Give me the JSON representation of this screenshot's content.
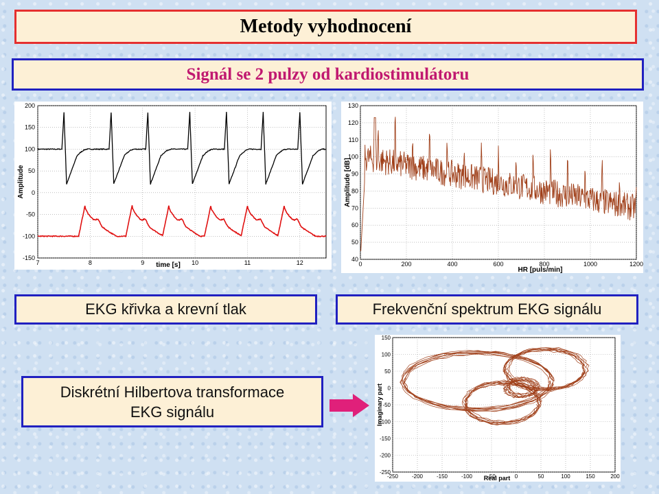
{
  "title": "Metody vyhodnocení",
  "subtitle": "Signál se 2 pulzy od kardiostimulátoru",
  "captions": {
    "ekg": "EKG křivka a krevní tlak",
    "spectrum": "Frekvenční spektrum EKG signálu",
    "hilbert_line1": "Diskrétní Hilbertova transformace",
    "hilbert_line2": "EKG signálu"
  },
  "colors": {
    "ekg": "#000000",
    "pressure": "#e01010",
    "spectrum": "#a0401a",
    "hilbert": "#a0401a",
    "arrow": "#e0207a"
  },
  "chart_data": [
    {
      "type": "line",
      "name": "ekg-and-blood-pressure",
      "xlabel": "time [s]",
      "ylabel": "Amplitude",
      "xlim": [
        7,
        12.5
      ],
      "ylim": [
        -150,
        200
      ],
      "x_ticks": [
        "7",
        "8",
        "9",
        "10",
        "11",
        "12"
      ],
      "y_ticks": [
        "200",
        "150",
        "100",
        "50",
        "0",
        "-50",
        "-100",
        "-150"
      ],
      "grid": true,
      "series": [
        {
          "name": "EKG",
          "beat_times": [
            7.5,
            8.4,
            9.1,
            9.9,
            10.6,
            11.3,
            12.0
          ],
          "baseline": 100,
          "peak": 185,
          "trough": 20
        },
        {
          "name": "blood pressure",
          "beat_times": [
            7.9,
            8.8,
            9.5,
            10.3,
            11.0,
            11.7
          ],
          "baseline": -100,
          "peak": -30
        }
      ]
    },
    {
      "type": "line",
      "name": "frequency-spectrum",
      "xlabel": "HR      [puls/min]",
      "ylabel": "Amplitude [dB]",
      "xlim": [
        0,
        1200
      ],
      "ylim": [
        40,
        130
      ],
      "x_ticks": [
        "0",
        "200",
        "400",
        "600",
        "800",
        "1000",
        "1200"
      ],
      "y_ticks": [
        "130",
        "120",
        "110",
        "100",
        "90",
        "80",
        "70",
        "60",
        "50",
        "40"
      ],
      "grid": true,
      "series": [
        {
          "name": "spectrum",
          "start_level": 100,
          "end_level": 70,
          "peak_spacing": 75,
          "peak_max": 123
        }
      ]
    },
    {
      "type": "line",
      "name": "hilbert-transform",
      "xlabel": "Real part",
      "ylabel": "Imaginary part",
      "xlim": [
        -250,
        200
      ],
      "ylim": [
        -250,
        150
      ],
      "x_ticks": [
        "-250",
        "-200",
        "-150",
        "-100",
        "-50",
        "0",
        "50",
        "100",
        "150",
        "200"
      ],
      "y_ticks": [
        "150",
        "100",
        "50",
        "0",
        "-50",
        "-100",
        "-150",
        "-200",
        "-250"
      ],
      "grid": true,
      "series": [
        {
          "name": "loops",
          "loop_count": 4
        }
      ]
    }
  ]
}
